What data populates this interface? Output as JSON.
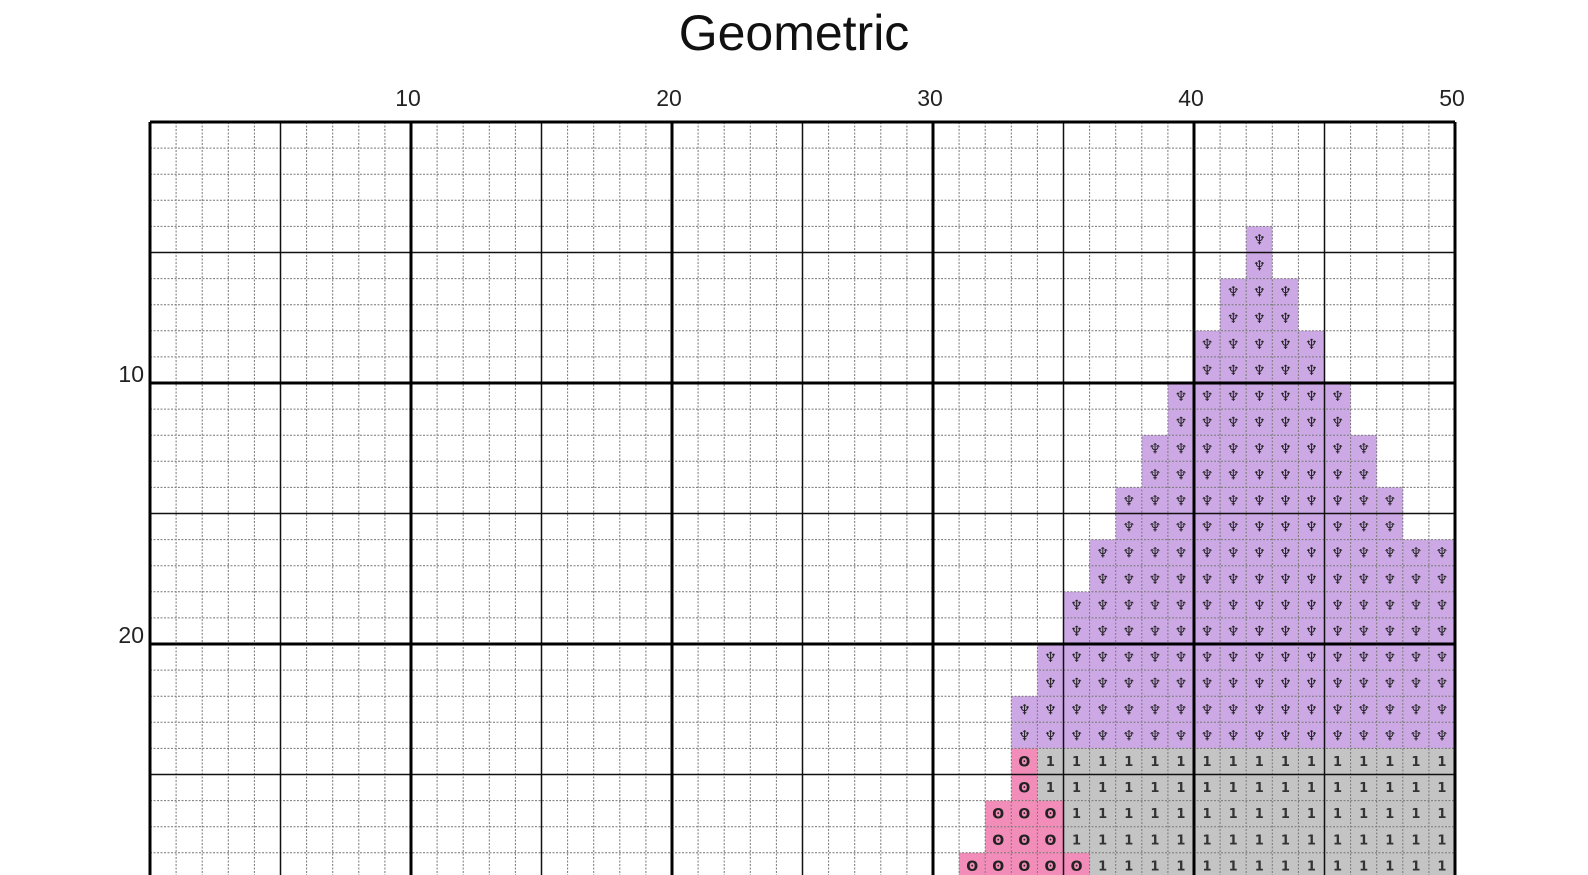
{
  "title": "Geometric",
  "column_numbers": [
    "10",
    "20",
    "30",
    "40",
    "50"
  ],
  "row_numbers": [
    "10",
    "20"
  ],
  "chart_data": {
    "type": "heatmap",
    "title": "Geometric",
    "columns": 50,
    "visible_rows": 29,
    "major_grid_every": 10,
    "minor_grid_every": 5,
    "legend": [
      {
        "key": "purple",
        "symbol": "♆",
        "color": "#cca8e4",
        "symbol_color": "#222222"
      },
      {
        "key": "grey",
        "symbol": "1",
        "color": "#c4c4c4",
        "symbol_color": "#333333"
      },
      {
        "key": "pink",
        "symbol": "ʘ",
        "color": "#f28cb8",
        "symbol_color": "#222222"
      }
    ],
    "filled_rows": [
      {
        "row": 5,
        "spans": [
          {
            "color": "purple",
            "from": 43,
            "to": 43
          }
        ]
      },
      {
        "row": 6,
        "spans": [
          {
            "color": "purple",
            "from": 43,
            "to": 43
          }
        ]
      },
      {
        "row": 7,
        "spans": [
          {
            "color": "purple",
            "from": 42,
            "to": 44
          }
        ]
      },
      {
        "row": 8,
        "spans": [
          {
            "color": "purple",
            "from": 42,
            "to": 44
          }
        ]
      },
      {
        "row": 9,
        "spans": [
          {
            "color": "purple",
            "from": 41,
            "to": 45
          }
        ]
      },
      {
        "row": 10,
        "spans": [
          {
            "color": "purple",
            "from": 41,
            "to": 45
          }
        ]
      },
      {
        "row": 11,
        "spans": [
          {
            "color": "purple",
            "from": 40,
            "to": 46
          }
        ]
      },
      {
        "row": 12,
        "spans": [
          {
            "color": "purple",
            "from": 40,
            "to": 46
          }
        ]
      },
      {
        "row": 13,
        "spans": [
          {
            "color": "purple",
            "from": 39,
            "to": 47
          }
        ]
      },
      {
        "row": 14,
        "spans": [
          {
            "color": "purple",
            "from": 39,
            "to": 47
          }
        ]
      },
      {
        "row": 15,
        "spans": [
          {
            "color": "purple",
            "from": 38,
            "to": 48
          }
        ]
      },
      {
        "row": 16,
        "spans": [
          {
            "color": "purple",
            "from": 38,
            "to": 48
          }
        ]
      },
      {
        "row": 17,
        "spans": [
          {
            "color": "purple",
            "from": 37,
            "to": 50
          }
        ]
      },
      {
        "row": 18,
        "spans": [
          {
            "color": "purple",
            "from": 37,
            "to": 50
          }
        ]
      },
      {
        "row": 19,
        "spans": [
          {
            "color": "purple",
            "from": 36,
            "to": 50
          }
        ]
      },
      {
        "row": 20,
        "spans": [
          {
            "color": "purple",
            "from": 36,
            "to": 50
          }
        ]
      },
      {
        "row": 21,
        "spans": [
          {
            "color": "purple",
            "from": 35,
            "to": 50
          }
        ]
      },
      {
        "row": 22,
        "spans": [
          {
            "color": "purple",
            "from": 35,
            "to": 50
          }
        ]
      },
      {
        "row": 23,
        "spans": [
          {
            "color": "purple",
            "from": 34,
            "to": 50
          }
        ]
      },
      {
        "row": 24,
        "spans": [
          {
            "color": "purple",
            "from": 34,
            "to": 50
          }
        ]
      },
      {
        "row": 25,
        "spans": [
          {
            "color": "pink",
            "from": 34,
            "to": 34
          },
          {
            "color": "grey",
            "from": 35,
            "to": 50
          }
        ]
      },
      {
        "row": 26,
        "spans": [
          {
            "color": "pink",
            "from": 34,
            "to": 34
          },
          {
            "color": "grey",
            "from": 35,
            "to": 50
          }
        ]
      },
      {
        "row": 27,
        "spans": [
          {
            "color": "pink",
            "from": 33,
            "to": 35
          },
          {
            "color": "grey",
            "from": 36,
            "to": 50
          }
        ]
      },
      {
        "row": 28,
        "spans": [
          {
            "color": "pink",
            "from": 33,
            "to": 35
          },
          {
            "color": "grey",
            "from": 36,
            "to": 50
          }
        ]
      },
      {
        "row": 29,
        "spans": [
          {
            "color": "pink",
            "from": 32,
            "to": 36
          },
          {
            "color": "grey",
            "from": 37,
            "to": 50
          }
        ]
      }
    ]
  }
}
